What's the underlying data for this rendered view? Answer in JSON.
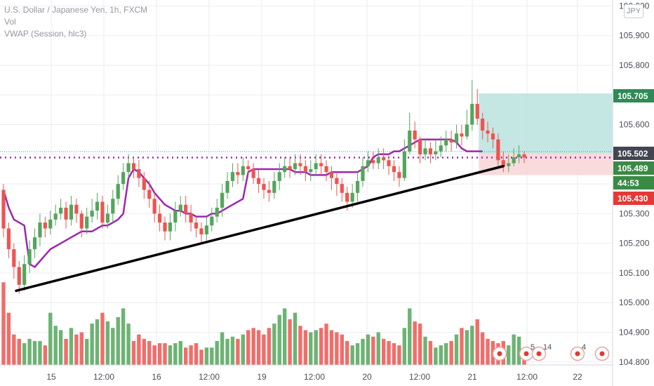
{
  "legend": {
    "symbol": "U.S. Dollar / Japanese Yen, 1h, FXCM",
    "volume": "Vol",
    "vwap": "VWAP (Session, hlc3)"
  },
  "currency_badge": "JPY",
  "colors": {
    "up": "#53a65c",
    "down": "#ef5350",
    "vwap": "#9c27b0",
    "trendline": "#000000",
    "profit_zone": "#b2dfdb",
    "loss_zone": "#f8d7d7",
    "grid": "#eceef2"
  },
  "price_tags": [
    {
      "label": "105.705",
      "bg": "#2e8b57",
      "color": "#ffffff",
      "value": 105.705
    },
    {
      "label": "105.502",
      "bg": "#434651",
      "color": "#ffffff",
      "value": 105.502
    },
    {
      "label": "105.489",
      "bg": "#3a8a45",
      "color": "#ffffff",
      "value": 105.489
    },
    {
      "label": "44:53",
      "bg": "#3a8a45",
      "color": "#ffffff",
      "value": 105.459
    },
    {
      "label": "105.430",
      "bg": "#e53935",
      "color": "#ffffff",
      "value": 105.43
    }
  ],
  "events": [
    {
      "kind": "flag",
      "label": ""
    },
    {
      "kind": "flags",
      "label": "5"
    },
    {
      "kind": "flags",
      "label": "14"
    },
    {
      "kind": "flag",
      "label": "4"
    },
    {
      "kind": "flag",
      "label": ""
    }
  ],
  "chart_data": {
    "type": "candlestick",
    "title": "U.S. Dollar / Japanese Yen, 1h, FXCM",
    "y_axis": {
      "ticks": [
        "104.800",
        "104.900",
        "105.000",
        "105.100",
        "105.200",
        "105.300",
        "105.400",
        "105.500",
        "105.600",
        "105.700",
        "105.800",
        "105.900",
        "106.000"
      ],
      "range": [
        104.79,
        106.02
      ]
    },
    "x_axis": {
      "ticks": [
        "15",
        "12:00",
        "16",
        "12:00",
        "19",
        "12:00",
        "20",
        "12:00",
        "21",
        "12:00",
        "22"
      ]
    },
    "candles": {
      "open": [
        105.38,
        105.25,
        105.18,
        105.12,
        105.06,
        105.13,
        105.18,
        105.22,
        105.27,
        105.25,
        105.28,
        105.3,
        105.32,
        105.28,
        105.33,
        105.3,
        105.25,
        105.29,
        105.31,
        105.34,
        105.27,
        105.3,
        105.35,
        105.4,
        105.44,
        105.47,
        105.45,
        105.42,
        105.38,
        105.35,
        105.3,
        105.27,
        105.24,
        105.27,
        105.31,
        105.33,
        105.3,
        105.27,
        105.25,
        105.23,
        105.26,
        105.29,
        105.32,
        105.37,
        105.41,
        105.44,
        105.43,
        105.46,
        105.45,
        105.42,
        105.4,
        105.38,
        105.37,
        105.41,
        105.44,
        105.46,
        105.45,
        105.47,
        105.46,
        105.44,
        105.45,
        105.47,
        105.46,
        105.44,
        105.42,
        105.4,
        105.37,
        105.34,
        105.37,
        105.41,
        105.46,
        105.48,
        105.47,
        105.49,
        105.48,
        105.46,
        105.44,
        105.42,
        105.51,
        105.58,
        105.55,
        105.5,
        105.52,
        105.5,
        105.51,
        105.53,
        105.55,
        105.54,
        105.57,
        105.56,
        105.6,
        105.67,
        105.62,
        105.58,
        105.57,
        105.55,
        105.48,
        105.46,
        105.47,
        105.49,
        105.5
      ],
      "close": [
        105.25,
        105.18,
        105.12,
        105.06,
        105.13,
        105.18,
        105.22,
        105.27,
        105.25,
        105.28,
        105.3,
        105.32,
        105.28,
        105.33,
        105.3,
        105.25,
        105.29,
        105.31,
        105.34,
        105.27,
        105.3,
        105.35,
        105.4,
        105.44,
        105.47,
        105.45,
        105.42,
        105.38,
        105.35,
        105.3,
        105.27,
        105.24,
        105.27,
        105.31,
        105.33,
        105.3,
        105.27,
        105.25,
        105.23,
        105.26,
        105.29,
        105.32,
        105.37,
        105.41,
        105.44,
        105.43,
        105.46,
        105.45,
        105.42,
        105.4,
        105.38,
        105.37,
        105.41,
        105.44,
        105.46,
        105.45,
        105.47,
        105.46,
        105.44,
        105.45,
        105.47,
        105.46,
        105.44,
        105.42,
        105.4,
        105.37,
        105.34,
        105.37,
        105.41,
        105.46,
        105.48,
        105.47,
        105.49,
        105.48,
        105.46,
        105.44,
        105.42,
        105.51,
        105.58,
        105.55,
        105.5,
        105.52,
        105.5,
        105.51,
        105.53,
        105.55,
        105.54,
        105.57,
        105.56,
        105.6,
        105.67,
        105.62,
        105.58,
        105.57,
        105.55,
        105.48,
        105.46,
        105.47,
        105.49,
        105.5,
        105.489
      ],
      "high": [
        105.4,
        105.27,
        105.2,
        105.14,
        105.16,
        105.21,
        105.25,
        105.3,
        105.29,
        105.31,
        105.33,
        105.35,
        105.34,
        105.36,
        105.35,
        105.31,
        105.32,
        105.35,
        105.37,
        105.36,
        105.33,
        105.38,
        105.43,
        105.47,
        105.5,
        105.49,
        105.48,
        105.44,
        105.41,
        105.37,
        105.33,
        105.29,
        105.3,
        105.34,
        105.36,
        105.36,
        105.33,
        105.29,
        105.27,
        105.29,
        105.32,
        105.35,
        105.4,
        105.44,
        105.47,
        105.47,
        105.49,
        105.48,
        105.47,
        105.45,
        105.42,
        105.41,
        105.44,
        105.47,
        105.49,
        105.49,
        105.5,
        105.5,
        105.48,
        105.48,
        105.5,
        105.5,
        105.48,
        105.46,
        105.44,
        105.42,
        105.39,
        105.4,
        105.44,
        105.49,
        105.51,
        105.51,
        105.52,
        105.52,
        105.5,
        105.48,
        105.46,
        105.55,
        105.64,
        105.61,
        105.56,
        105.55,
        105.54,
        105.55,
        105.56,
        105.58,
        105.58,
        105.6,
        105.6,
        105.65,
        105.75,
        105.72,
        105.64,
        105.61,
        105.59,
        105.57,
        105.51,
        105.5,
        105.52,
        105.53,
        105.51
      ],
      "low": [
        105.22,
        105.15,
        105.08,
        105.03,
        105.04,
        105.1,
        105.15,
        105.19,
        105.22,
        105.23,
        105.26,
        105.28,
        105.25,
        105.26,
        105.27,
        105.22,
        105.23,
        105.27,
        105.28,
        105.25,
        105.25,
        105.27,
        105.33,
        105.38,
        105.42,
        105.42,
        105.39,
        105.35,
        105.32,
        105.27,
        105.24,
        105.21,
        105.21,
        105.24,
        105.29,
        105.27,
        105.24,
        105.22,
        105.2,
        105.21,
        105.24,
        105.27,
        105.29,
        105.35,
        105.39,
        105.4,
        105.41,
        105.43,
        105.4,
        105.37,
        105.35,
        105.34,
        105.35,
        105.38,
        105.42,
        105.42,
        105.43,
        105.43,
        105.41,
        105.41,
        105.43,
        105.43,
        105.41,
        105.38,
        105.36,
        105.34,
        105.31,
        105.32,
        105.34,
        105.39,
        105.44,
        105.45,
        105.45,
        105.45,
        105.43,
        105.41,
        105.39,
        105.41,
        105.5,
        105.52,
        105.47,
        105.48,
        105.47,
        105.48,
        105.49,
        105.51,
        105.51,
        105.52,
        105.53,
        105.55,
        105.58,
        105.6,
        105.55,
        105.54,
        105.52,
        105.46,
        105.44,
        105.44,
        105.46,
        105.47,
        105.47
      ]
    },
    "volume": [
      190,
      120,
      70,
      60,
      50,
      60,
      55,
      55,
      45,
      120,
      90,
      80,
      60,
      85,
      70,
      75,
      60,
      95,
      105,
      120,
      100,
      85,
      110,
      130,
      95,
      55,
      70,
      60,
      55,
      45,
      50,
      50,
      45,
      50,
      55,
      40,
      45,
      50,
      35,
      40,
      40,
      55,
      75,
      60,
      65,
      60,
      70,
      80,
      85,
      80,
      70,
      85,
      95,
      115,
      130,
      105,
      120,
      90,
      80,
      75,
      80,
      85,
      95,
      80,
      75,
      70,
      55,
      45,
      50,
      60,
      70,
      65,
      75,
      60,
      55,
      50,
      45,
      85,
      130,
      100,
      95,
      65,
      55,
      40,
      45,
      50,
      55,
      70,
      85,
      80,
      90,
      105,
      75,
      60,
      55,
      50,
      55,
      45,
      70,
      65,
      15
    ],
    "vwap_series": [
      {
        "name": "VWAP (Session, hlc3)",
        "segments": [
          [
            105.38,
            105.32,
            105.28,
            105.27,
            105.26,
            105.13,
            105.12,
            105.14,
            105.16,
            105.18,
            105.19,
            105.2,
            105.21,
            105.22,
            105.23,
            105.24,
            105.24,
            105.24,
            105.25,
            105.26,
            105.26,
            105.27,
            105.28,
            105.3,
            105.42,
            105.45,
            105.44,
            105.42,
            105.4,
            105.37,
            105.35,
            105.33,
            105.32,
            105.31,
            105.31,
            105.3,
            105.3,
            105.29,
            105.29,
            105.29,
            105.3,
            105.3,
            105.31,
            105.32,
            105.33,
            105.34,
            105.35,
            105.44,
            105.45,
            105.45,
            105.45,
            105.45,
            105.45,
            105.45,
            105.45,
            105.45,
            105.44,
            105.44,
            105.44,
            105.43,
            105.43,
            105.43,
            105.43,
            105.44,
            105.44,
            105.44,
            105.44,
            105.44,
            105.44,
            105.45,
            105.46,
            105.49,
            105.5,
            105.5,
            105.5,
            105.51,
            105.51,
            105.52,
            105.53,
            105.54,
            105.55,
            105.55,
            105.55,
            105.55,
            105.55,
            105.55,
            105.55,
            105.54,
            105.52,
            105.51,
            105.51,
            105.51,
            105.51
          ]
        ]
      }
    ],
    "horizontal_lines": [
      {
        "value": 105.489,
        "style": "dotted",
        "color": "#9c27b0"
      }
    ],
    "trendline": {
      "from": [
        0,
        105.04
      ],
      "to": [
        96,
        105.46
      ],
      "color": "#000000"
    },
    "position_tool": {
      "entry": 105.502,
      "target": 105.705,
      "stop": 105.43,
      "start_index": 91
    }
  }
}
